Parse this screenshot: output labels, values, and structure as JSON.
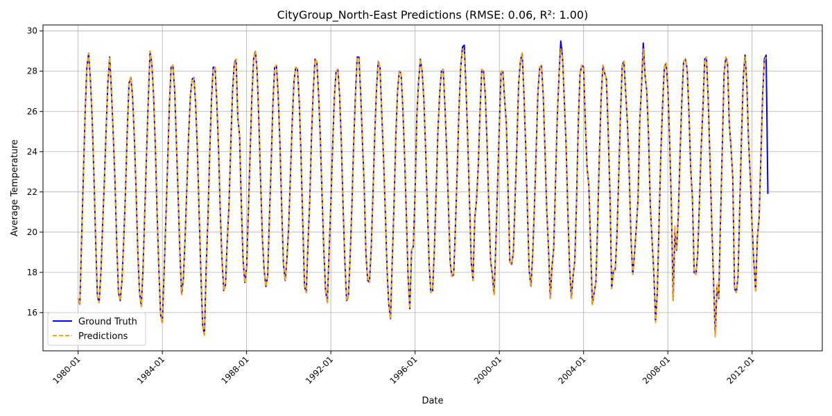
{
  "chart_data": {
    "type": "line",
    "title": "CityGroup_North-East Predictions (RMSE: 0.06, R²: 1.00)",
    "xlabel": "Date",
    "ylabel": "Average Temperature",
    "x_range": [
      "1978-05",
      "2015-05"
    ],
    "ylim": [
      14.1,
      30.3
    ],
    "x_ticks": [
      "1980-01",
      "1984-01",
      "1988-01",
      "1992-01",
      "1996-01",
      "2000-01",
      "2004-01",
      "2008-01",
      "2012-01"
    ],
    "y_ticks": [
      16,
      18,
      20,
      22,
      24,
      26,
      28,
      30
    ],
    "grid": true,
    "legend_position": "lower-left",
    "start": "1980-01",
    "series": [
      {
        "name": "Ground Truth",
        "color": "#0000ff",
        "style": "solid",
        "values": [
          16.7,
          16.4,
          19.6,
          22.8,
          25.9,
          28.2,
          28.9,
          27.6,
          25.7,
          22.9,
          19.6,
          16.8,
          16.5,
          18.0,
          20.4,
          22.6,
          25.2,
          27.5,
          28.7,
          27.0,
          24.9,
          22.6,
          19.5,
          17.0,
          16.6,
          17.6,
          19.6,
          22.0,
          25.0,
          27.4,
          27.7,
          26.8,
          24.8,
          22.2,
          19.1,
          17.0,
          16.3,
          18.2,
          21.0,
          23.9,
          26.6,
          29.0,
          28.4,
          26.8,
          24.3,
          21.0,
          18.2,
          15.9,
          15.5,
          18.0,
          20.6,
          23.4,
          26.3,
          28.2,
          28.3,
          27.1,
          24.5,
          21.8,
          19.0,
          16.9,
          17.7,
          19.8,
          22.3,
          24.9,
          26.8,
          27.6,
          27.7,
          26.3,
          24.0,
          20.8,
          17.8,
          15.3,
          14.9,
          18.3,
          20.7,
          24.0,
          26.6,
          28.2,
          28.2,
          26.5,
          24.2,
          21.0,
          18.6,
          17.1,
          17.4,
          19.6,
          21.4,
          24.4,
          27.0,
          28.4,
          28.6,
          25.7,
          24.8,
          21.4,
          18.6,
          17.5,
          18.2,
          21.0,
          23.9,
          26.7,
          28.6,
          29.0,
          28.0,
          25.5,
          22.5,
          19.7,
          18.1,
          17.3,
          17.8,
          20.7,
          23.4,
          26.4,
          28.2,
          28.3,
          26.8,
          24.4,
          21.2,
          18.4,
          17.6,
          18.7,
          20.3,
          22.9,
          25.5,
          27.5,
          28.2,
          28.1,
          26.5,
          23.8,
          20.5,
          17.3,
          17.0,
          19.5,
          21.6,
          24.8,
          27.1,
          28.6,
          28.5,
          26.9,
          24.7,
          21.8,
          19.1,
          17.1,
          16.5,
          19.0,
          21.4,
          24.2,
          26.7,
          28.0,
          28.1,
          26.8,
          24.4,
          21.2,
          18.5,
          16.6,
          16.8,
          18.8,
          21.3,
          24.4,
          26.8,
          28.7,
          28.7,
          26.9,
          24.5,
          22.3,
          18.9,
          17.6,
          17.5,
          19.2,
          21.9,
          24.8,
          27.1,
          28.5,
          28.2,
          25.9,
          23.7,
          21.1,
          18.2,
          16.4,
          15.7,
          18.6,
          21.4,
          24.7,
          27.0,
          28.0,
          27.9,
          26.2,
          23.8,
          20.9,
          17.8,
          16.2,
          19.1,
          19.3,
          22.0,
          25.8,
          27.5,
          28.6,
          28.0,
          26.6,
          24.1,
          21.3,
          18.4,
          17.0,
          17.1,
          19.2,
          22.0,
          25.0,
          26.9,
          28.0,
          28.1,
          26.3,
          24.0,
          21.3,
          18.5,
          17.8,
          17.9,
          20.3,
          23.1,
          26.1,
          28.2,
          29.2,
          29.3,
          27.2,
          24.6,
          21.5,
          18.5,
          17.6,
          20.7,
          21.6,
          23.3,
          26.0,
          28.1,
          28.0,
          26.8,
          24.4,
          21.3,
          18.6,
          17.9,
          16.9,
          19.4,
          22.4,
          25.3,
          28.0,
          28.0,
          26.6,
          25.4,
          22.0,
          18.5,
          18.4,
          19.0,
          21.7,
          24.4,
          27.4,
          28.5,
          28.9,
          26.9,
          24.3,
          21.1,
          18.1,
          17.3,
          18.9,
          21.3,
          24.1,
          27.0,
          28.2,
          28.3,
          26.8,
          24.1,
          21.1,
          19.2,
          16.7,
          18.3,
          19.2,
          22.5,
          25.7,
          27.8,
          29.5,
          28.7,
          26.6,
          24.4,
          21.1,
          18.3,
          16.7,
          17.8,
          18.6,
          21.6,
          25.5,
          27.9,
          28.3,
          28.2,
          25.4,
          23.2,
          22.3,
          19.3,
          16.4,
          17.0,
          17.5,
          20.4,
          23.9,
          26.7,
          28.3,
          27.9,
          27.6,
          25.0,
          22.0,
          17.2,
          18.1,
          18.1,
          19.8,
          22.7,
          25.8,
          28.3,
          28.5,
          26.9,
          25.4,
          22.9,
          19.7,
          17.9,
          18.9,
          20.2,
          21.6,
          25.5,
          27.2,
          29.4,
          27.8,
          27.0,
          24.8,
          21.3,
          19.6,
          18.0,
          15.6,
          17.0,
          20.5,
          23.9,
          26.3,
          28.2,
          28.4,
          27.2,
          24.6,
          21.4,
          16.6,
          20.0,
          19.1,
          20.9,
          24.0,
          26.6,
          28.5,
          28.6,
          28.1,
          26.0,
          23.2,
          21.7,
          18.0,
          17.9,
          18.9,
          21.5,
          24.2,
          26.2,
          28.6,
          28.7,
          26.6,
          23.6,
          20.5,
          17.7,
          14.9,
          17.3,
          16.7,
          20.6,
          24.1,
          27.8,
          28.7,
          28.4,
          25.4,
          24.2,
          22.7,
          17.2,
          17.0,
          17.8,
          21.4,
          24.8,
          27.7,
          28.8,
          27.4,
          24.5,
          22.7,
          20.3,
          18.5,
          17.1,
          19.7,
          20.7,
          23.7,
          26.8,
          28.6,
          28.8,
          21.9
        ]
      },
      {
        "name": "Predictions",
        "color": "#ffa500",
        "style": "dashed",
        "values": [
          16.7,
          16.4,
          19.6,
          22.8,
          25.9,
          28.2,
          28.9,
          27.6,
          25.7,
          22.9,
          19.6,
          16.8,
          16.5,
          18.0,
          20.4,
          22.6,
          25.2,
          27.5,
          28.7,
          27.0,
          24.9,
          22.6,
          19.5,
          17.0,
          16.6,
          17.6,
          19.6,
          22.0,
          25.0,
          27.4,
          27.7,
          26.8,
          24.8,
          22.2,
          19.1,
          17.0,
          16.3,
          18.2,
          21.0,
          23.9,
          26.6,
          29.0,
          28.4,
          26.8,
          24.3,
          21.0,
          18.2,
          15.9,
          15.5,
          18.0,
          20.6,
          23.4,
          26.3,
          28.2,
          28.3,
          27.1,
          24.5,
          21.8,
          19.0,
          16.9,
          17.7,
          19.8,
          22.3,
          24.9,
          26.8,
          27.6,
          27.7,
          26.3,
          24.0,
          20.8,
          17.8,
          15.3,
          14.8,
          18.3,
          20.7,
          24.0,
          26.6,
          28.1,
          28.2,
          26.5,
          24.2,
          21.0,
          18.6,
          17.1,
          17.4,
          19.6,
          21.4,
          24.4,
          27.0,
          28.4,
          28.6,
          25.7,
          24.8,
          21.4,
          18.6,
          17.5,
          18.2,
          21.0,
          23.9,
          26.7,
          28.6,
          29.0,
          28.0,
          25.5,
          22.5,
          19.7,
          18.1,
          17.3,
          17.8,
          20.7,
          23.4,
          26.4,
          28.2,
          28.3,
          26.8,
          24.4,
          21.2,
          18.4,
          17.6,
          18.7,
          20.3,
          22.9,
          25.5,
          27.5,
          28.2,
          28.1,
          26.5,
          23.8,
          20.5,
          17.3,
          17.0,
          19.5,
          21.6,
          24.8,
          27.1,
          28.6,
          28.5,
          26.9,
          24.7,
          21.8,
          19.1,
          17.1,
          16.5,
          19.0,
          21.4,
          24.2,
          26.7,
          28.0,
          28.1,
          26.8,
          24.4,
          21.2,
          18.5,
          16.6,
          16.8,
          18.8,
          21.3,
          24.4,
          26.8,
          28.7,
          28.6,
          26.9,
          24.5,
          22.3,
          18.9,
          17.6,
          17.5,
          19.2,
          21.9,
          24.8,
          27.1,
          28.5,
          28.2,
          25.9,
          23.7,
          21.1,
          18.2,
          16.4,
          15.7,
          18.6,
          21.4,
          24.7,
          27.0,
          28.0,
          27.9,
          26.2,
          23.8,
          20.9,
          17.8,
          16.2,
          19.1,
          19.3,
          22.0,
          25.8,
          27.5,
          28.6,
          28.0,
          26.6,
          24.1,
          21.3,
          18.4,
          17.0,
          17.1,
          19.2,
          22.0,
          25.0,
          26.9,
          28.0,
          28.1,
          26.3,
          24.0,
          21.3,
          18.5,
          17.8,
          17.9,
          20.3,
          23.1,
          26.1,
          28.2,
          29.1,
          29.0,
          27.2,
          24.6,
          21.5,
          18.5,
          17.6,
          20.7,
          21.6,
          23.3,
          26.0,
          28.1,
          28.0,
          26.8,
          24.4,
          21.3,
          18.6,
          17.9,
          16.9,
          19.4,
          22.4,
          25.3,
          28.0,
          28.0,
          26.6,
          25.4,
          22.0,
          18.5,
          18.4,
          19.0,
          21.7,
          24.4,
          27.4,
          28.5,
          28.9,
          26.9,
          24.3,
          21.1,
          18.1,
          17.3,
          18.9,
          21.3,
          24.1,
          27.0,
          28.2,
          28.3,
          26.8,
          24.1,
          21.1,
          19.2,
          16.7,
          18.3,
          19.2,
          22.5,
          25.7,
          27.8,
          29.1,
          28.7,
          26.6,
          24.4,
          21.1,
          18.3,
          16.7,
          17.8,
          18.6,
          21.6,
          25.5,
          27.9,
          28.3,
          28.2,
          25.4,
          23.2,
          22.3,
          19.3,
          16.4,
          17.0,
          17.5,
          20.4,
          23.9,
          26.7,
          28.3,
          27.9,
          27.6,
          25.0,
          22.0,
          17.2,
          18.1,
          18.1,
          19.8,
          22.7,
          25.8,
          28.3,
          28.5,
          26.9,
          25.4,
          22.9,
          19.7,
          17.9,
          18.9,
          20.2,
          21.6,
          25.5,
          27.2,
          29.1,
          27.8,
          27.0,
          24.8,
          21.3,
          19.6,
          18.0,
          15.5,
          17.0,
          20.5,
          23.9,
          26.3,
          28.2,
          28.4,
          27.2,
          24.6,
          21.4,
          16.6,
          20.3,
          19.1,
          20.9,
          24.0,
          26.6,
          28.5,
          28.6,
          28.1,
          26.0,
          23.2,
          21.7,
          18.0,
          17.9,
          18.9,
          21.5,
          24.2,
          26.2,
          28.6,
          28.7,
          26.6,
          23.6,
          20.5,
          17.7,
          14.8,
          17.4,
          16.7,
          20.6,
          24.1,
          27.8,
          28.7,
          28.4,
          25.4,
          24.2,
          22.7,
          17.2,
          17.0,
          17.8,
          21.4,
          24.8,
          27.7,
          28.7,
          27.4,
          24.5,
          22.7,
          20.3,
          18.5,
          17.0,
          19.7,
          20.7,
          23.7,
          26.8,
          28.5,
          28.7
        ]
      }
    ]
  }
}
